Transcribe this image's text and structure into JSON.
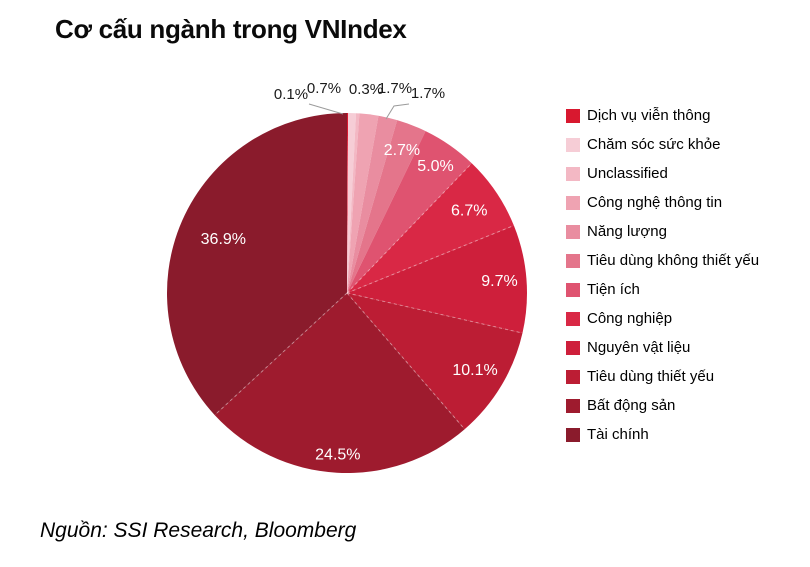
{
  "title": "Cơ cấu ngành trong VNIndex",
  "source": "Nguồn: SSI Research, Bloomberg",
  "chart_data": {
    "type": "pie",
    "title": "Cơ cấu ngành trong VNIndex",
    "legend_position": "right",
    "start_angle_deg": 0,
    "direction": "clockwise",
    "unit": "percent",
    "total": 100.1,
    "slices": [
      {
        "label": "Dịch vụ viễn thông",
        "value": 0.1,
        "display": "0.1%",
        "color": "#D8182F"
      },
      {
        "label": "Chăm sóc sức khỏe",
        "value": 0.7,
        "display": "0.7%",
        "color": "#F6CDD6"
      },
      {
        "label": "Unclassified",
        "value": 0.3,
        "display": "0.3%",
        "color": "#F3B8C4"
      },
      {
        "label": "Công nghệ thông tin",
        "value": 1.7,
        "display": "1.7%",
        "color": "#EFA3B2"
      },
      {
        "label": "Năng lượng",
        "value": 1.7,
        "display": "1.7%",
        "color": "#E98DA0"
      },
      {
        "label": "Tiêu dùng không thiết yếu",
        "value": 2.7,
        "display": "2.7%",
        "color": "#E4758B"
      },
      {
        "label": "Tiện ích",
        "value": 5.0,
        "display": "5.0%",
        "color": "#DF5370"
      },
      {
        "label": "Công nghiệp",
        "value": 6.7,
        "display": "6.7%",
        "color": "#D92845"
      },
      {
        "label": "Nguyên vật liệu",
        "value": 9.7,
        "display": "9.7%",
        "color": "#CE1F3B"
      },
      {
        "label": "Tiêu dùng thiết yếu",
        "value": 10.1,
        "display": "10.1%",
        "color": "#BC1D34"
      },
      {
        "label": "Bất động sản",
        "value": 24.5,
        "display": "24.5%",
        "color": "#9E1B2E"
      },
      {
        "label": "Tài chính",
        "value": 36.9,
        "display": "36.9%",
        "color": "#8A1B2C"
      }
    ]
  }
}
